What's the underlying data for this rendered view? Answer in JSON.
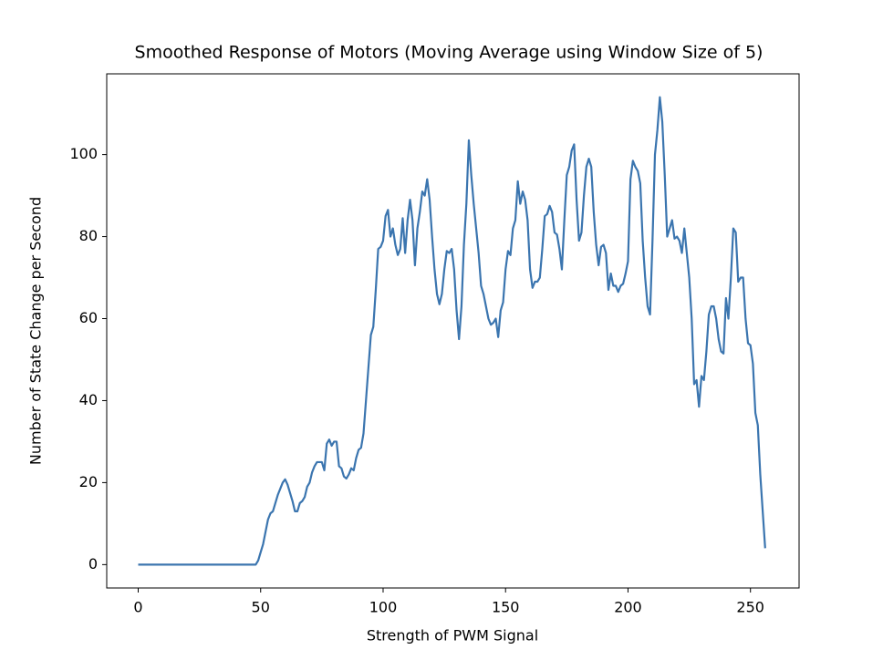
{
  "chart_data": {
    "type": "line",
    "title": "Smoothed Response of Motors (Moving Average using Window Size of 5)",
    "x_label": "Strength of PWM Signal",
    "y_label": "Number of State Change per Second",
    "xlim": [
      -12.85,
      269.85
    ],
    "ylim": [
      -5.7,
      119.7
    ],
    "xticks": [
      0,
      50,
      100,
      150,
      200,
      250
    ],
    "yticks": [
      0,
      20,
      40,
      60,
      80,
      100
    ],
    "x": [
      0,
      10,
      20,
      30,
      40,
      48,
      49,
      50,
      51,
      52,
      53,
      54,
      55,
      56,
      57,
      58,
      59,
      60,
      61,
      62,
      63,
      64,
      65,
      66,
      67,
      68,
      69,
      70,
      71,
      72,
      73,
      74,
      75,
      76,
      77,
      78,
      79,
      80,
      81,
      82,
      83,
      84,
      85,
      86,
      87,
      88,
      89,
      90,
      91,
      92,
      93,
      94,
      95,
      96,
      97,
      98,
      99,
      100,
      101,
      102,
      103,
      104,
      105,
      106,
      107,
      108,
      109,
      110,
      111,
      112,
      113,
      114,
      115,
      116,
      117,
      118,
      119,
      120,
      121,
      122,
      123,
      124,
      125,
      126,
      127,
      128,
      129,
      130,
      131,
      132,
      133,
      134,
      135,
      136,
      137,
      138,
      139,
      140,
      141,
      142,
      143,
      144,
      145,
      146,
      147,
      148,
      149,
      150,
      151,
      152,
      153,
      154,
      155,
      156,
      157,
      158,
      159,
      160,
      161,
      162,
      163,
      164,
      165,
      166,
      167,
      168,
      169,
      170,
      171,
      172,
      173,
      174,
      175,
      176,
      177,
      178,
      179,
      180,
      181,
      182,
      183,
      184,
      185,
      186,
      187,
      188,
      189,
      190,
      191,
      192,
      193,
      194,
      195,
      196,
      197,
      198,
      199,
      200,
      201,
      202,
      203,
      204,
      205,
      206,
      207,
      208,
      209,
      210,
      211,
      212,
      213,
      214,
      215,
      216,
      217,
      218,
      219,
      220,
      221,
      222,
      223,
      224,
      225,
      226,
      227,
      228,
      229,
      230,
      231,
      232,
      233,
      234,
      235,
      236,
      237,
      238,
      239,
      240,
      241,
      242,
      243,
      244,
      245,
      246,
      247,
      248,
      249,
      250,
      251,
      252,
      253,
      254,
      255,
      256
    ],
    "series": [
      {
        "color": "#3b75af",
        "values": [
          0,
          0,
          0,
          0,
          0,
          0,
          1,
          3,
          5,
          8,
          11,
          12.5,
          13,
          15,
          17,
          18.5,
          20,
          20.8,
          19.5,
          17.5,
          15.5,
          13,
          13,
          15,
          15.5,
          16.5,
          19,
          20,
          22.5,
          24,
          25,
          25,
          25,
          23,
          29.5,
          30.5,
          29,
          30,
          30,
          24,
          23.5,
          21.5,
          21,
          22,
          23.5,
          23,
          26,
          28,
          28.5,
          32,
          40,
          48,
          56,
          58,
          67,
          77,
          77.5,
          79,
          85,
          86.5,
          80,
          82,
          78,
          75.5,
          77,
          84.5,
          76,
          84,
          89,
          84,
          73,
          82,
          86,
          91,
          90,
          94,
          89,
          80,
          72,
          66,
          63.5,
          66,
          72,
          76.5,
          76,
          77,
          72,
          62,
          55,
          63,
          78,
          88,
          103.5,
          95,
          88,
          82,
          76,
          68,
          66,
          63,
          60,
          58.5,
          59,
          60,
          55.5,
          62,
          64,
          72,
          76.5,
          75.5,
          82,
          84,
          93.5,
          88,
          91,
          89,
          84,
          72,
          67.5,
          69,
          69,
          70,
          77,
          85,
          85.5,
          87.5,
          86,
          81,
          80.5,
          77,
          72,
          84,
          95,
          97,
          101,
          102.5,
          89,
          79,
          81,
          90,
          97,
          99,
          97,
          86,
          78,
          73,
          77.5,
          78,
          76,
          67,
          71,
          68,
          68,
          66.5,
          68,
          68.5,
          71,
          74,
          94,
          98.5,
          97,
          96,
          93,
          79,
          70,
          63,
          61,
          79,
          100,
          106,
          114,
          108,
          95,
          80,
          82,
          84,
          79.5,
          80,
          79,
          76,
          82,
          76,
          70,
          60,
          44,
          45,
          38.5,
          46,
          45,
          52,
          61,
          63,
          63,
          60,
          55,
          52,
          51.5,
          65,
          60,
          70,
          82,
          81,
          69,
          70,
          70,
          60,
          54,
          53.5,
          49,
          37,
          34,
          22,
          13,
          4
        ]
      }
    ]
  }
}
